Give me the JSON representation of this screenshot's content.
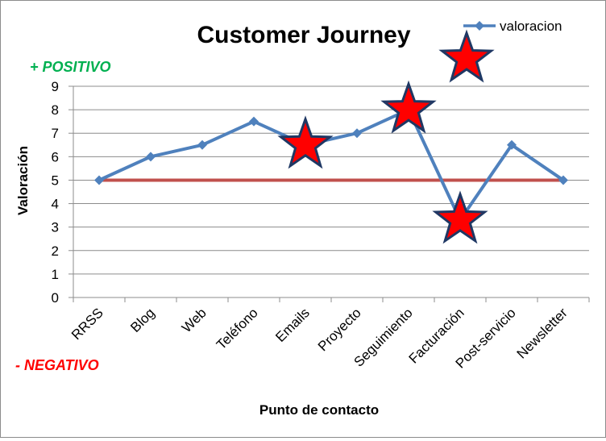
{
  "chart_data": {
    "type": "line",
    "title": "Customer Journey",
    "xlabel": "Punto de contacto",
    "ylabel": "Valoración",
    "categories": [
      "RRSS",
      "Blog",
      "Web",
      "Teléfono",
      "Emails",
      "Proyecto",
      "Seguimiento",
      "Facturación",
      "Post-servicio",
      "Newsletter"
    ],
    "series": [
      {
        "name": "valoracion",
        "values": [
          5,
          6,
          6.5,
          7.5,
          6.5,
          7,
          8,
          3.3,
          6.5,
          5
        ],
        "color": "#4f81bd"
      }
    ],
    "reference_line": {
      "value": 5,
      "color": "#c0504d"
    },
    "highlighted_points": [
      "Emails",
      "Seguimiento",
      "Facturación"
    ],
    "ylim": [
      0,
      9
    ],
    "yticks": [
      "0",
      "1",
      "2",
      "3",
      "4",
      "5",
      "6",
      "7",
      "8",
      "9"
    ],
    "grid": true,
    "legend_position": "top-right",
    "annotations": {
      "positive": "+ POSITIVO",
      "negative": "- NEGATIVO",
      "positive_color": "#00b050",
      "negative_color": "#ff0000"
    },
    "star_fill": "#ff0000",
    "star_stroke": "#1f3864"
  }
}
